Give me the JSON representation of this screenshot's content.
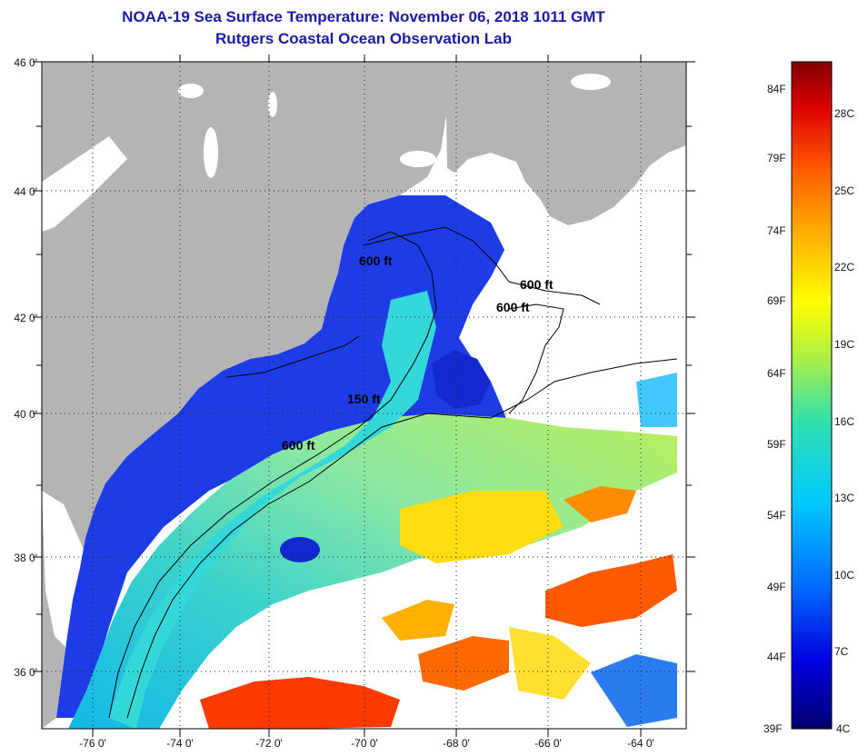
{
  "header": {
    "title": "NOAA-19 Sea Surface Temperature:  November 06, 2018 1011 GMT",
    "subtitle": "Rutgers Coastal Ocean Observation Lab"
  },
  "map": {
    "lon_ticks": [
      "-76 0'",
      "-74 0'",
      "-72 0'",
      "-70 0'",
      "-68 0'",
      "-66 0'",
      "-64 0'"
    ],
    "lat_ticks": [
      "46 0'",
      "44 0'",
      "42 0'",
      "40 0'",
      "38 0'",
      "36 0'"
    ],
    "contour_labels": [
      "600 ft",
      "600 ft",
      "600 ft",
      "150 ft",
      "600 ft"
    ],
    "colors": {
      "land": "#b4b4b4",
      "cloud": "#ffffff",
      "contour": "#000000"
    }
  },
  "colorbar": {
    "fahrenheit_labels": [
      "84F",
      "79F",
      "74F",
      "69F",
      "64F",
      "59F",
      "54F",
      "49F",
      "44F",
      "39F"
    ],
    "celsius_labels": [
      "28C",
      "25C",
      "22C",
      "19C",
      "16C",
      "13C",
      "10C",
      "7C",
      "4C"
    ]
  }
}
